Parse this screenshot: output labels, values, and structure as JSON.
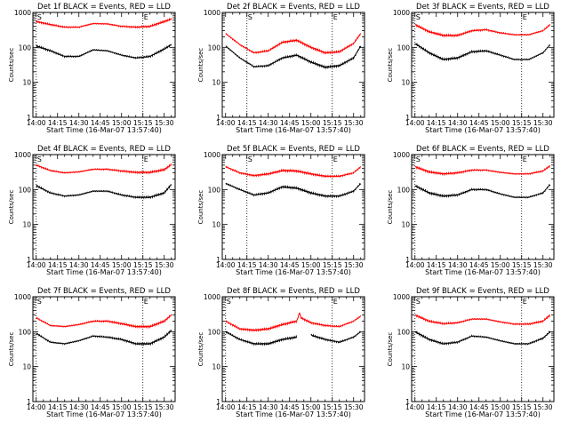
{
  "figure": {
    "legend_text": "BLACK = Events, RED = LLD",
    "ylabel": "Counts/sec",
    "xlabel": "Start Time (16-Mar-07 13:57:40)",
    "xtick_labels": [
      "14:00",
      "14:15",
      "14:30",
      "14:45",
      "15:00",
      "15:15",
      "15:30"
    ],
    "ytick_labels": [
      "1",
      "10",
      "100",
      "1000"
    ],
    "marker_start": "S",
    "marker_end": "E",
    "colors": {
      "events": "#000000",
      "lld": "#ff0000"
    }
  },
  "chart_data": [
    {
      "type": "line",
      "title": "Det 1f BLACK = Events, RED = LLD",
      "detector": "1f",
      "xlabel": "Start Time (16-Mar-07 13:57:40)",
      "ylabel": "Counts/sec",
      "xlim": [
        "13:57:40",
        "15:37:40"
      ],
      "ylim": [
        1,
        1000
      ],
      "yscale": "log",
      "x": [
        "14:00",
        "14:10",
        "14:20",
        "14:30",
        "14:40",
        "14:50",
        "15:00",
        "15:10",
        "15:20",
        "15:30",
        "15:35"
      ],
      "series": [
        {
          "name": "BLACK = Events",
          "color": "#000000",
          "values": [
            110,
            80,
            55,
            55,
            85,
            80,
            60,
            50,
            55,
            90,
            120
          ]
        },
        {
          "name": "RED = LLD",
          "color": "#ff0000",
          "values": [
            550,
            450,
            380,
            380,
            480,
            470,
            400,
            380,
            400,
            550,
            650
          ]
        }
      ],
      "markers": {
        "S": "14:00",
        "E": "15:15"
      }
    },
    {
      "type": "line",
      "title": "Det 2f BLACK = Events, RED = LLD",
      "detector": "2f",
      "xlabel": "Start Time (16-Mar-07 13:57:40)",
      "ylabel": "Counts/sec",
      "xlim": [
        "13:57:40",
        "15:37:40"
      ],
      "ylim": [
        1,
        1000
      ],
      "yscale": "log",
      "x": [
        "14:00",
        "14:10",
        "14:20",
        "14:30",
        "14:40",
        "14:50",
        "15:00",
        "15:10",
        "15:20",
        "15:30",
        "15:35"
      ],
      "series": [
        {
          "name": "BLACK = Events",
          "color": "#000000",
          "values": [
            110,
            50,
            28,
            30,
            50,
            60,
            38,
            27,
            30,
            50,
            110
          ]
        },
        {
          "name": "RED = LLD",
          "color": "#ff0000",
          "values": [
            250,
            120,
            70,
            80,
            140,
            160,
            100,
            70,
            75,
            130,
            250
          ]
        }
      ],
      "markers": {
        "S": "14:15",
        "E": "15:15"
      }
    },
    {
      "type": "line",
      "title": "Det 3f BLACK = Events, RED = LLD",
      "detector": "3f",
      "xlabel": "Start Time (16-Mar-07 13:57:40)",
      "ylabel": "Counts/sec",
      "xlim": [
        "13:57:40",
        "15:37:40"
      ],
      "ylim": [
        1,
        1000
      ],
      "yscale": "log",
      "x": [
        "14:00",
        "14:10",
        "14:20",
        "14:30",
        "14:40",
        "14:50",
        "15:00",
        "15:10",
        "15:20",
        "15:30",
        "15:35"
      ],
      "series": [
        {
          "name": "BLACK = Events",
          "color": "#000000",
          "values": [
            130,
            70,
            45,
            50,
            75,
            80,
            60,
            45,
            45,
            70,
            120
          ]
        },
        {
          "name": "RED = LLD",
          "color": "#ff0000",
          "values": [
            450,
            280,
            220,
            220,
            300,
            320,
            260,
            230,
            230,
            300,
            450
          ]
        }
      ],
      "markers": {
        "S": "14:00",
        "E": "15:15"
      }
    },
    {
      "type": "line",
      "title": "Det 4f BLACK = Events, RED = LLD",
      "detector": "4f",
      "xlabel": "Start Time (16-Mar-07 13:57:40)",
      "ylabel": "Counts/sec",
      "xlim": [
        "13:57:40",
        "15:37:40"
      ],
      "ylim": [
        1,
        1000
      ],
      "yscale": "log",
      "x": [
        "14:00",
        "14:10",
        "14:20",
        "14:30",
        "14:40",
        "14:50",
        "15:00",
        "15:10",
        "15:20",
        "15:30",
        "15:35"
      ],
      "series": [
        {
          "name": "BLACK = Events",
          "color": "#000000",
          "values": [
            130,
            80,
            65,
            70,
            90,
            90,
            70,
            60,
            60,
            80,
            140
          ]
        },
        {
          "name": "RED = LLD",
          "color": "#ff0000",
          "values": [
            500,
            350,
            300,
            320,
            380,
            380,
            340,
            310,
            310,
            370,
            520
          ]
        }
      ],
      "markers": {
        "S": "14:00",
        "E": "15:15"
      }
    },
    {
      "type": "line",
      "title": "Det 5f BLACK = Events, RED = LLD",
      "detector": "5f",
      "xlabel": "Start Time (16-Mar-07 13:57:40)",
      "ylabel": "Counts/sec",
      "xlim": [
        "13:57:40",
        "15:37:40"
      ],
      "ylim": [
        1,
        1000
      ],
      "yscale": "log",
      "x": [
        "14:00",
        "14:10",
        "14:20",
        "14:30",
        "14:40",
        "14:50",
        "15:00",
        "15:10",
        "15:20",
        "15:30",
        "15:35"
      ],
      "series": [
        {
          "name": "BLACK = Events",
          "color": "#000000",
          "values": [
            150,
            100,
            70,
            80,
            120,
            110,
            80,
            65,
            65,
            90,
            150
          ]
        },
        {
          "name": "RED = LLD",
          "color": "#ff0000",
          "values": [
            450,
            300,
            250,
            280,
            350,
            340,
            280,
            240,
            240,
            300,
            450
          ]
        }
      ],
      "markers": {
        "S": "14:15",
        "E": "15:15"
      }
    },
    {
      "type": "line",
      "title": "Det 6f BLACK = Events, RED = LLD",
      "detector": "6f",
      "xlabel": "Start Time (16-Mar-07 13:57:40)",
      "ylabel": "Counts/sec",
      "xlim": [
        "13:57:40",
        "15:37:40"
      ],
      "ylim": [
        1,
        1000
      ],
      "yscale": "log",
      "x": [
        "14:00",
        "14:10",
        "14:20",
        "14:30",
        "14:40",
        "14:50",
        "15:00",
        "15:10",
        "15:20",
        "15:30",
        "15:35"
      ],
      "series": [
        {
          "name": "BLACK = Events",
          "color": "#000000",
          "values": [
            130,
            80,
            65,
            70,
            100,
            100,
            75,
            60,
            60,
            80,
            140
          ]
        },
        {
          "name": "RED = LLD",
          "color": "#ff0000",
          "values": [
            450,
            320,
            280,
            300,
            360,
            360,
            310,
            280,
            280,
            340,
            480
          ]
        }
      ],
      "markers": {
        "S": "14:00",
        "E": "15:15"
      }
    },
    {
      "type": "line",
      "title": "Det 7f BLACK = Events, RED = LLD",
      "detector": "7f",
      "xlabel": "Start Time (16-Mar-07 13:57:40)",
      "ylabel": "Counts/sec",
      "xlim": [
        "13:57:40",
        "15:37:40"
      ],
      "ylim": [
        1,
        1000
      ],
      "yscale": "log",
      "x": [
        "14:00",
        "14:10",
        "14:20",
        "14:30",
        "14:40",
        "14:50",
        "15:00",
        "15:10",
        "15:20",
        "15:30",
        "15:35"
      ],
      "series": [
        {
          "name": "BLACK = Events",
          "color": "#000000",
          "values": [
            90,
            50,
            45,
            55,
            75,
            70,
            60,
            45,
            45,
            70,
            110
          ]
        },
        {
          "name": "RED = LLD",
          "color": "#ff0000",
          "values": [
            250,
            150,
            140,
            160,
            200,
            200,
            170,
            140,
            140,
            200,
            300
          ]
        }
      ],
      "markers": {
        "S": "14:00",
        "E": "15:15"
      }
    },
    {
      "type": "line",
      "title": "Det 8f BLACK = Events, RED = LLD",
      "detector": "8f",
      "xlabel": "Start Time (16-Mar-07 13:57:40)",
      "ylabel": "Counts/sec",
      "xlim": [
        "13:57:40",
        "15:37:40"
      ],
      "ylim": [
        1,
        1000
      ],
      "yscale": "log",
      "x": [
        "14:00",
        "14:10",
        "14:20",
        "14:30",
        "14:40",
        "14:50",
        "14:52",
        "14:53",
        "15:00",
        "15:10",
        "15:20",
        "15:30",
        "15:35"
      ],
      "series": [
        {
          "name": "BLACK = Events",
          "color": "#000000",
          "values": [
            100,
            60,
            45,
            45,
            60,
            70,
            null,
            null,
            80,
            60,
            50,
            70,
            100
          ]
        },
        {
          "name": "RED = LLD",
          "color": "#ff0000",
          "values": [
            200,
            120,
            110,
            120,
            160,
            200,
            350,
            250,
            180,
            150,
            140,
            200,
            280
          ]
        }
      ],
      "markers": {
        "S": "14:00",
        "E": "15:15"
      }
    },
    {
      "type": "line",
      "title": "Det 9f BLACK = Events, RED = LLD",
      "detector": "9f",
      "xlabel": "Start Time (16-Mar-07 13:57:40)",
      "ylabel": "Counts/sec",
      "xlim": [
        "13:57:40",
        "15:37:40"
      ],
      "ylim": [
        1,
        1000
      ],
      "yscale": "log",
      "x": [
        "14:00",
        "14:10",
        "14:20",
        "14:30",
        "14:40",
        "14:50",
        "15:00",
        "15:10",
        "15:20",
        "15:30",
        "15:35"
      ],
      "series": [
        {
          "name": "BLACK = Events",
          "color": "#000000",
          "values": [
            100,
            60,
            45,
            50,
            75,
            70,
            55,
            45,
            45,
            65,
            100
          ]
        },
        {
          "name": "RED = LLD",
          "color": "#ff0000",
          "values": [
            300,
            200,
            170,
            180,
            230,
            230,
            190,
            165,
            165,
            200,
            300
          ]
        }
      ],
      "markers": {
        "S": "14:00",
        "E": "15:15"
      }
    }
  ]
}
